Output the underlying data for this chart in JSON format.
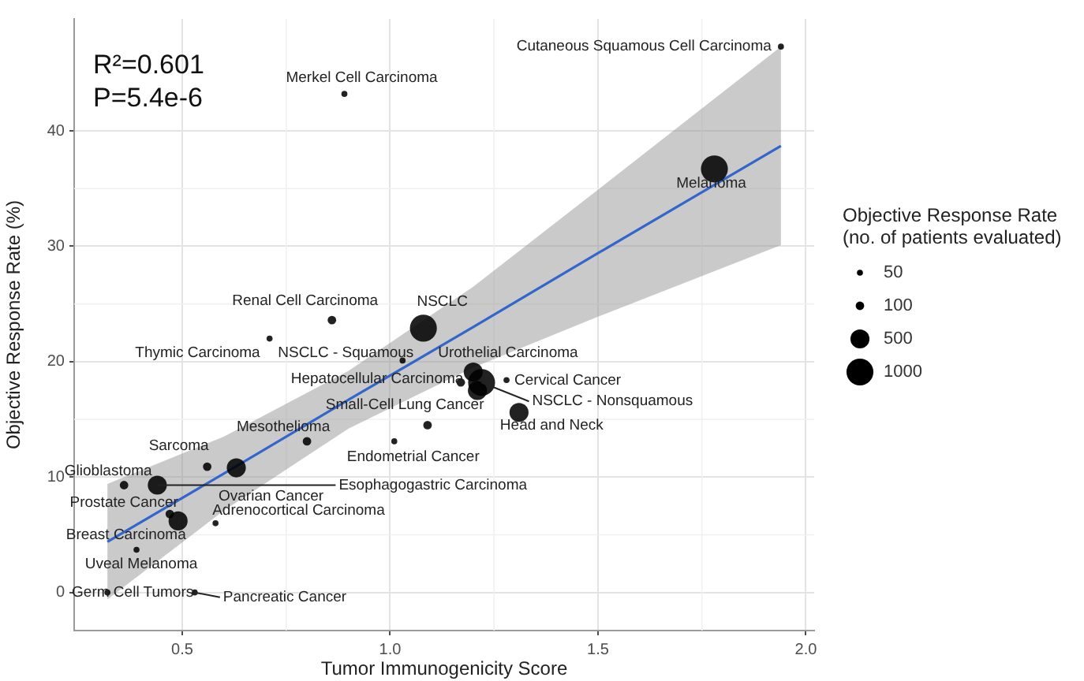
{
  "chart_data": {
    "type": "bubble",
    "xlabel": "Tumor Immunogenicity Score",
    "ylabel": "Objective Response Rate (%)",
    "legend_title": "Objective Response Rate\n(no. of patients evaluated)",
    "grid": true,
    "xlim": [
      0.24,
      2.02
    ],
    "ylim": [
      -3.3,
      49.7
    ],
    "xticks": [
      0.5,
      {
        "value": 1,
        "label": "1.0"
      },
      1.5,
      {
        "value": 2,
        "label": "2.0"
      }
    ],
    "yticks": [
      0,
      10,
      20,
      30,
      40
    ],
    "size_legend": [
      50,
      100,
      500,
      1000
    ],
    "series": [
      {
        "color": "#000000",
        "x": [
          1.94,
          0.89,
          1.78,
          0.86,
          1.08,
          0.71,
          1.03,
          1.2,
          1.17,
          1.28,
          1.21,
          1.22,
          1.31,
          1.09,
          1.01,
          0.8,
          0.56,
          0.63,
          0.44,
          0.36,
          0.47,
          0.49,
          0.58,
          0.39,
          0.32,
          0.53
        ],
        "values": [
          47.3,
          43.2,
          36.7,
          23.6,
          22.9,
          22,
          20.1,
          19.1,
          18.2,
          18.4,
          17.5,
          18.2,
          15.6,
          14.5,
          13.1,
          13.1,
          10.9,
          10.8,
          9.3,
          9.3,
          6.8,
          6.2,
          6,
          3.7,
          0,
          0
        ],
        "sizes": [
          50,
          50,
          1000,
          100,
          1000,
          50,
          50,
          500,
          100,
          50,
          500,
          1000,
          500,
          100,
          50,
          100,
          100,
          500,
          500,
          100,
          100,
          500,
          50,
          50,
          50,
          50
        ]
      },
      {
        "type": "line",
        "color": "#3366cc",
        "x": [
          0.32,
          0.6,
          0.9,
          1.2,
          1.5,
          1.94
        ],
        "values": [
          4.4,
          10.3,
          16.7,
          23,
          29.4,
          38.7
        ],
        "lower": [
          -0.6,
          7.1,
          14.2,
          19.5,
          23.9,
          30.1
        ],
        "upper": [
          9.4,
          13.5,
          19.2,
          26.5,
          34.9,
          47.3
        ]
      }
    ],
    "annotations": [
      "R²=0.601",
      "P=5.4e-6",
      {
        "text": "Cutaneous Squamous Cell Carcinoma",
        "x": 1.94,
        "y": 47.3
      },
      {
        "text": "Merkel Cell Carcinoma",
        "x": 0.89,
        "y": 43.2
      },
      {
        "text": "Melanoma",
        "x": 1.78,
        "y": 36.7
      },
      {
        "text": "Renal Cell Carcinoma",
        "x": 0.86,
        "y": 23.6
      },
      {
        "text": "NSCLC",
        "x": 1.08,
        "y": 22.9
      },
      {
        "text": "Thymic Carcinoma",
        "x": 0.71,
        "y": 22
      },
      {
        "text": "NSCLC - Squamous",
        "x": 1.03,
        "y": 20.1
      },
      {
        "text": "Urothelial Carcinoma",
        "x": 1.2,
        "y": 19.1
      },
      {
        "text": "Hepatocellular Carcinoma",
        "x": 1.17,
        "y": 18.2
      },
      {
        "text": "Cervical Cancer",
        "x": 1.28,
        "y": 18.4
      },
      {
        "text": "Small-Cell Lung Cancer",
        "x": 1.21,
        "y": 17.5
      },
      {
        "text": "NSCLC - Nonsquamous",
        "x": 1.22,
        "y": 18.2
      },
      {
        "text": "Head and Neck",
        "x": 1.31,
        "y": 15.6
      },
      {
        "text": "Endometrial Cancer",
        "x": 1.01,
        "y": 13.1
      },
      {
        "text": "Mesothelioma",
        "x": 0.8,
        "y": 13.1
      },
      {
        "text": "Sarcoma",
        "x": 0.56,
        "y": 10.9
      },
      {
        "text": "Ovarian Cancer",
        "x": 0.63,
        "y": 10.8
      },
      {
        "text": "Esophagogastric Carcinoma",
        "x": 0.44,
        "y": 9.3
      },
      {
        "text": "Glioblastoma",
        "x": 0.36,
        "y": 9.3
      },
      {
        "text": "Prostate Cancer",
        "x": 0.47,
        "y": 6.8
      },
      {
        "text": "Breast Carcinoma",
        "x": 0.49,
        "y": 6.2
      },
      {
        "text": "Adrenocortical Carcinoma",
        "x": 0.58,
        "y": 6
      },
      {
        "text": "Uveal Melanoma",
        "x": 0.39,
        "y": 3.7
      },
      {
        "text": "Germ Cell Tumors",
        "x": 0.32,
        "y": 0
      },
      {
        "text": "Pancreatic Cancer",
        "x": 0.53,
        "y": 0
      }
    ]
  }
}
